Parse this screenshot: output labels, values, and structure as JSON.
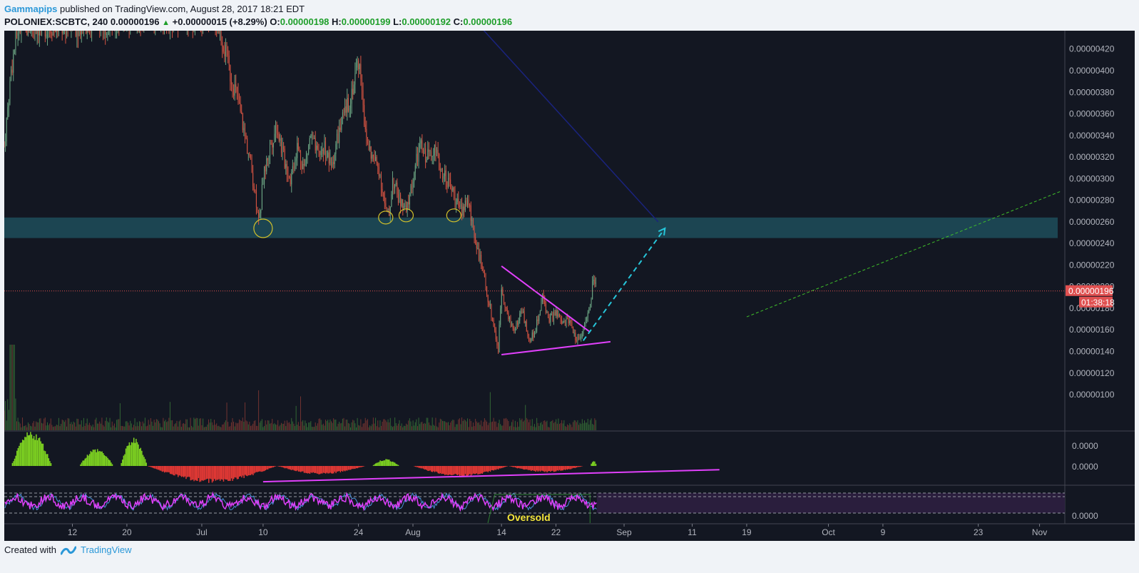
{
  "header": {
    "author": "Gammapips",
    "published_text": "published on TradingView.com, August 28, 2017 18:21 EDT"
  },
  "symbol_bar": {
    "symbol": "POLONIEX:SCBTC, 240",
    "price": "0.00000196",
    "change": "+0.00000015 (+8.29%)",
    "open_label": "O:",
    "open": "0.00000198",
    "high_label": "H:",
    "high": "0.00000199",
    "low_label": "L:",
    "low": "0.00000192",
    "close_label": "C:",
    "close": "0.00000196"
  },
  "footer": {
    "created_with": "Created with",
    "brand": "TradingView"
  },
  "colors": {
    "background": "#131722",
    "up": "#6ba583",
    "down": "#d75442",
    "support_zone": "#1f4e5a",
    "triangle": "#e040fb",
    "arrow": "#26c6da",
    "trend_green": "#3fbf2a",
    "price_line": "#e05050",
    "rsi": "#e040fb",
    "rsi_signal": "#4a90d9"
  },
  "chart_data": {
    "type": "candlestick",
    "symbol": "POLONIEX:SCBTC",
    "interval": "240",
    "ylim": [
      6.7e-07,
      4.37e-06
    ],
    "y_ticks": [
      "0.00000420",
      "0.00000400",
      "0.00000380",
      "0.00000360",
      "0.00000340",
      "0.00000320",
      "0.00000300",
      "0.00000280",
      "0.00000260",
      "0.00000240",
      "0.00000220",
      "0.00000200",
      "0.00000180",
      "0.00000160",
      "0.00000140",
      "0.00000120",
      "0.00000100"
    ],
    "x_ticks": [
      {
        "label": "12",
        "day": 12
      },
      {
        "label": "20",
        "day": 20
      },
      {
        "label": "Jul",
        "day": 31
      },
      {
        "label": "10",
        "day": 40
      },
      {
        "label": "24",
        "day": 54
      },
      {
        "label": "Aug",
        "day": 62
      },
      {
        "label": "14",
        "day": 75
      },
      {
        "label": "22",
        "day": 83
      },
      {
        "label": "Sep",
        "day": 93
      },
      {
        "label": "11",
        "day": 103
      },
      {
        "label": "19",
        "day": 111
      },
      {
        "label": "Oct",
        "day": 123
      },
      {
        "label": "9",
        "day": 131
      },
      {
        "label": "23",
        "day": 145
      },
      {
        "label": "Nov",
        "day": 154
      }
    ],
    "x_range_days": [
      2,
      157.5
    ],
    "price_path": [
      [
        2,
        3.3e-06
      ],
      [
        3,
        4e-06
      ],
      [
        4,
        4.4e-06
      ],
      [
        33,
        4.5e-06
      ],
      [
        34,
        4.3e-06
      ],
      [
        35,
        4e-06
      ],
      [
        36,
        3.8e-06
      ],
      [
        37,
        3.5e-06
      ],
      [
        38,
        3.2e-06
      ],
      [
        39,
        2.8e-06
      ],
      [
        39.5,
        2.62e-06
      ],
      [
        40,
        3e-06
      ],
      [
        41,
        3.3e-06
      ],
      [
        42,
        3.5e-06
      ],
      [
        43,
        3.2e-06
      ],
      [
        44,
        3e-06
      ],
      [
        45,
        3.3e-06
      ],
      [
        46,
        3.1e-06
      ],
      [
        47,
        3.4e-06
      ],
      [
        48,
        3.2e-06
      ],
      [
        49,
        3.3e-06
      ],
      [
        50,
        3.1e-06
      ],
      [
        51,
        3.4e-06
      ],
      [
        52,
        3.6e-06
      ],
      [
        53,
        3.8e-06
      ],
      [
        54,
        4.1e-06
      ],
      [
        54.5,
        3.9e-06
      ],
      [
        55,
        3.4e-06
      ],
      [
        56,
        3.2e-06
      ],
      [
        57,
        3.1e-06
      ],
      [
        58,
        2.7e-06
      ],
      [
        58.5,
        2.65e-06
      ],
      [
        59,
        3e-06
      ],
      [
        60,
        2.8e-06
      ],
      [
        61,
        2.68e-06
      ],
      [
        62,
        3e-06
      ],
      [
        63,
        3.3e-06
      ],
      [
        64,
        3.2e-06
      ],
      [
        65,
        3.3e-06
      ],
      [
        66,
        3.1e-06
      ],
      [
        67,
        3e-06
      ],
      [
        68,
        2.85e-06
      ],
      [
        69,
        2.7e-06
      ],
      [
        70,
        2.8e-06
      ],
      [
        71,
        2.5e-06
      ],
      [
        72,
        2.2e-06
      ],
      [
        73,
        1.9e-06
      ],
      [
        74,
        1.6e-06
      ],
      [
        74.5,
        1.4e-06
      ],
      [
        75,
        2e-06
      ],
      [
        76,
        1.7e-06
      ],
      [
        77,
        1.6e-06
      ],
      [
        78,
        1.8e-06
      ],
      [
        79,
        1.5e-06
      ],
      [
        80,
        1.6e-06
      ],
      [
        81,
        1.9e-06
      ],
      [
        82,
        1.7e-06
      ],
      [
        83,
        1.75e-06
      ],
      [
        84,
        1.65e-06
      ],
      [
        85,
        1.7e-06
      ],
      [
        86,
        1.5e-06
      ],
      [
        87,
        1.6e-06
      ],
      [
        88,
        1.8e-06
      ],
      [
        88.5,
        2.1e-06
      ],
      [
        89,
        1.96e-06
      ]
    ],
    "current_price": "0.00000196",
    "countdown": "01:38:18",
    "support_zone": [
      2.45e-06,
      2.64e-06
    ],
    "circled_lows": [
      [
        40,
        2.54e-06
      ],
      [
        58,
        2.64e-06
      ],
      [
        61,
        2.66e-06
      ],
      [
        68,
        2.66e-06
      ]
    ],
    "triangle": {
      "upper": [
        [
          75,
          2.19e-06
        ],
        [
          88,
          1.58e-06
        ]
      ],
      "lower": [
        [
          75,
          1.37e-06
        ],
        [
          91,
          1.49e-06
        ]
      ]
    },
    "projection_arrow": [
      [
        87,
        1.5e-06
      ],
      [
        99,
        2.54e-06
      ]
    ],
    "green_trendline": [
      [
        111,
        1.72e-06
      ],
      [
        157,
        2.88e-06
      ]
    ],
    "navy_trendline": [
      [
        72,
        4.4e-06
      ],
      [
        98,
        2.6e-06
      ]
    ],
    "oscillator": {
      "y_ticks": [
        "0.0000",
        "0.0000"
      ],
      "pos_humps": [
        [
          3,
          9,
          1.0
        ],
        [
          13,
          18,
          0.5
        ],
        [
          19,
          23,
          0.8
        ],
        [
          56,
          60,
          0.2
        ],
        [
          88,
          89,
          0.15
        ]
      ],
      "neg_humps": [
        [
          23,
          42,
          0.8
        ],
        [
          42,
          55,
          0.4
        ],
        [
          62,
          76,
          0.5
        ],
        [
          76,
          87,
          0.3
        ]
      ],
      "trendline": [
        [
          40,
          -0.85
        ],
        [
          107,
          -0.2
        ]
      ]
    },
    "rsi": {
      "y_tick": "0.0000",
      "annotation": "Oversold",
      "annotation_day": 79
    }
  }
}
